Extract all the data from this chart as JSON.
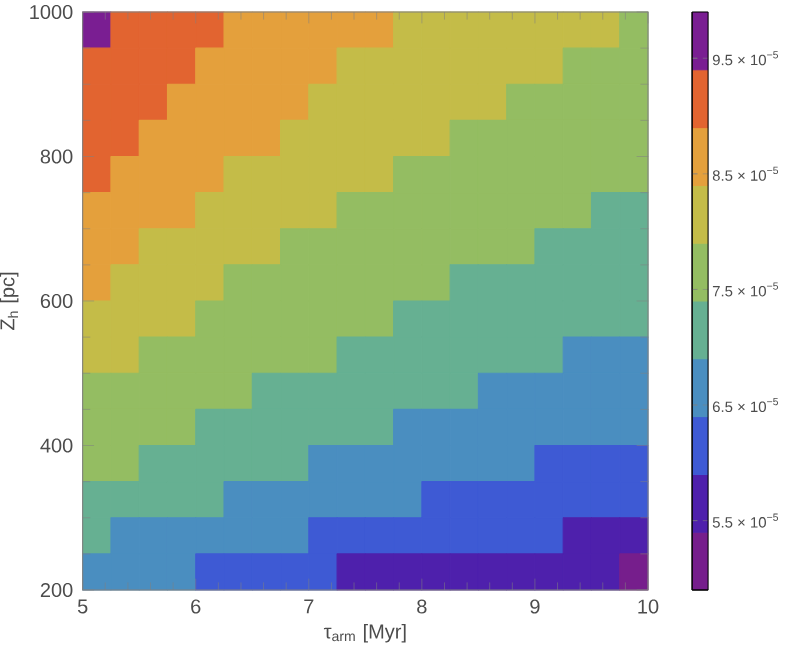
{
  "chart_data": {
    "type": "heatmap",
    "xlabel": "τ$_{arm}$ [Myr]",
    "ylabel": "Z$_{h}$ [pc]",
    "x": [
      5.125,
      5.375,
      5.625,
      5.875,
      6.125,
      6.375,
      6.625,
      6.875,
      7.125,
      7.375,
      7.625,
      7.875,
      8.125,
      8.375,
      8.625,
      8.875,
      9.125,
      9.375,
      9.625,
      9.875
    ],
    "y": [
      975,
      925,
      875,
      825,
      775,
      725,
      675,
      625,
      575,
      525,
      475,
      425,
      375,
      325,
      275,
      225
    ],
    "xlim": [
      5,
      10
    ],
    "xticks": [
      5,
      6,
      7,
      8,
      9,
      10
    ],
    "ylim": [
      200,
      1000
    ],
    "yticks": [
      200,
      400,
      600,
      800,
      1000
    ],
    "clim": [
      4.9e-05,
      9.9e-05
    ],
    "cticks": [
      {
        "value": 5.5e-05,
        "label": "5.5 × 10$^{−5}$"
      },
      {
        "value": 6.5e-05,
        "label": "6.5 × 10$^{−5}$"
      },
      {
        "value": 7.5e-05,
        "label": "7.5 × 10$^{−5}$"
      },
      {
        "value": 8.5e-05,
        "label": "8.5 × 10$^{−5}$"
      },
      {
        "value": 9.5e-05,
        "label": "9.5 × 10$^{−5}$"
      }
    ],
    "cells": [
      [
        9.65e-05,
        9.15e-05,
        9.15e-05,
        9.15e-05,
        9.15e-05,
        8.65e-05,
        8.65e-05,
        8.65e-05,
        8.65e-05,
        8.65e-05,
        8.65e-05,
        8.15e-05,
        8.15e-05,
        8.15e-05,
        8.15e-05,
        8.15e-05,
        8.15e-05,
        8.15e-05,
        8.15e-05,
        7.65e-05
      ],
      [
        9.15e-05,
        9.15e-05,
        9.15e-05,
        9.15e-05,
        8.65e-05,
        8.65e-05,
        8.65e-05,
        8.65e-05,
        8.65e-05,
        8.15e-05,
        8.15e-05,
        8.15e-05,
        8.15e-05,
        8.15e-05,
        8.15e-05,
        8.15e-05,
        8.15e-05,
        7.65e-05,
        7.65e-05,
        7.65e-05
      ],
      [
        9.15e-05,
        9.15e-05,
        9.15e-05,
        8.65e-05,
        8.65e-05,
        8.65e-05,
        8.65e-05,
        8.65e-05,
        8.15e-05,
        8.15e-05,
        8.15e-05,
        8.15e-05,
        8.15e-05,
        8.15e-05,
        8.15e-05,
        7.65e-05,
        7.65e-05,
        7.65e-05,
        7.65e-05,
        7.65e-05
      ],
      [
        9.15e-05,
        9.15e-05,
        8.65e-05,
        8.65e-05,
        8.65e-05,
        8.65e-05,
        8.65e-05,
        8.15e-05,
        8.15e-05,
        8.15e-05,
        8.15e-05,
        8.15e-05,
        8.15e-05,
        7.65e-05,
        7.65e-05,
        7.65e-05,
        7.65e-05,
        7.65e-05,
        7.65e-05,
        7.65e-05
      ],
      [
        9.15e-05,
        8.65e-05,
        8.65e-05,
        8.65e-05,
        8.65e-05,
        8.15e-05,
        8.15e-05,
        8.15e-05,
        8.15e-05,
        8.15e-05,
        8.15e-05,
        7.65e-05,
        7.65e-05,
        7.65e-05,
        7.65e-05,
        7.65e-05,
        7.65e-05,
        7.65e-05,
        7.65e-05,
        7.65e-05
      ],
      [
        8.65e-05,
        8.65e-05,
        8.65e-05,
        8.65e-05,
        8.15e-05,
        8.15e-05,
        8.15e-05,
        8.15e-05,
        8.15e-05,
        7.65e-05,
        7.65e-05,
        7.65e-05,
        7.65e-05,
        7.65e-05,
        7.65e-05,
        7.65e-05,
        7.65e-05,
        7.65e-05,
        7.15e-05,
        7.15e-05
      ],
      [
        8.65e-05,
        8.65e-05,
        8.15e-05,
        8.15e-05,
        8.15e-05,
        8.15e-05,
        8.15e-05,
        7.65e-05,
        7.65e-05,
        7.65e-05,
        7.65e-05,
        7.65e-05,
        7.65e-05,
        7.65e-05,
        7.65e-05,
        7.65e-05,
        7.15e-05,
        7.15e-05,
        7.15e-05,
        7.15e-05
      ],
      [
        8.65e-05,
        8.15e-05,
        8.15e-05,
        8.15e-05,
        8.15e-05,
        7.65e-05,
        7.65e-05,
        7.65e-05,
        7.65e-05,
        7.65e-05,
        7.65e-05,
        7.65e-05,
        7.65e-05,
        7.15e-05,
        7.15e-05,
        7.15e-05,
        7.15e-05,
        7.15e-05,
        7.15e-05,
        7.15e-05
      ],
      [
        8.15e-05,
        8.15e-05,
        8.15e-05,
        8.15e-05,
        7.65e-05,
        7.65e-05,
        7.65e-05,
        7.65e-05,
        7.65e-05,
        7.65e-05,
        7.65e-05,
        7.15e-05,
        7.15e-05,
        7.15e-05,
        7.15e-05,
        7.15e-05,
        7.15e-05,
        7.15e-05,
        7.15e-05,
        7.15e-05
      ],
      [
        8.15e-05,
        8.15e-05,
        7.65e-05,
        7.65e-05,
        7.65e-05,
        7.65e-05,
        7.65e-05,
        7.65e-05,
        7.65e-05,
        7.15e-05,
        7.15e-05,
        7.15e-05,
        7.15e-05,
        7.15e-05,
        7.15e-05,
        7.15e-05,
        7.15e-05,
        6.65e-05,
        6.65e-05,
        6.65e-05
      ],
      [
        7.65e-05,
        7.65e-05,
        7.65e-05,
        7.65e-05,
        7.65e-05,
        7.65e-05,
        7.15e-05,
        7.15e-05,
        7.15e-05,
        7.15e-05,
        7.15e-05,
        7.15e-05,
        7.15e-05,
        7.15e-05,
        6.65e-05,
        6.65e-05,
        6.65e-05,
        6.65e-05,
        6.65e-05,
        6.65e-05
      ],
      [
        7.65e-05,
        7.65e-05,
        7.65e-05,
        7.65e-05,
        7.15e-05,
        7.15e-05,
        7.15e-05,
        7.15e-05,
        7.15e-05,
        7.15e-05,
        7.15e-05,
        6.65e-05,
        6.65e-05,
        6.65e-05,
        6.65e-05,
        6.65e-05,
        6.65e-05,
        6.65e-05,
        6.65e-05,
        6.65e-05
      ],
      [
        7.65e-05,
        7.65e-05,
        7.15e-05,
        7.15e-05,
        7.15e-05,
        7.15e-05,
        7.15e-05,
        7.15e-05,
        6.65e-05,
        6.65e-05,
        6.65e-05,
        6.65e-05,
        6.65e-05,
        6.65e-05,
        6.65e-05,
        6.65e-05,
        6.15e-05,
        6.15e-05,
        6.15e-05,
        6.15e-05
      ],
      [
        7.15e-05,
        7.15e-05,
        7.15e-05,
        7.15e-05,
        7.15e-05,
        6.65e-05,
        6.65e-05,
        6.65e-05,
        6.65e-05,
        6.65e-05,
        6.65e-05,
        6.65e-05,
        6.15e-05,
        6.15e-05,
        6.15e-05,
        6.15e-05,
        6.15e-05,
        6.15e-05,
        6.15e-05,
        6.15e-05
      ],
      [
        7.15e-05,
        6.65e-05,
        6.65e-05,
        6.65e-05,
        6.65e-05,
        6.65e-05,
        6.65e-05,
        6.65e-05,
        6.15e-05,
        6.15e-05,
        6.15e-05,
        6.15e-05,
        6.15e-05,
        6.15e-05,
        6.15e-05,
        6.15e-05,
        6.15e-05,
        5.65e-05,
        5.65e-05,
        5.65e-05
      ],
      [
        6.65e-05,
        6.65e-05,
        6.65e-05,
        6.65e-05,
        6.15e-05,
        6.15e-05,
        6.15e-05,
        6.15e-05,
        6.15e-05,
        5.65e-05,
        5.65e-05,
        5.65e-05,
        5.65e-05,
        5.65e-05,
        5.65e-05,
        5.65e-05,
        5.65e-05,
        5.65e-05,
        5.65e-05,
        5.15e-05
      ]
    ]
  }
}
